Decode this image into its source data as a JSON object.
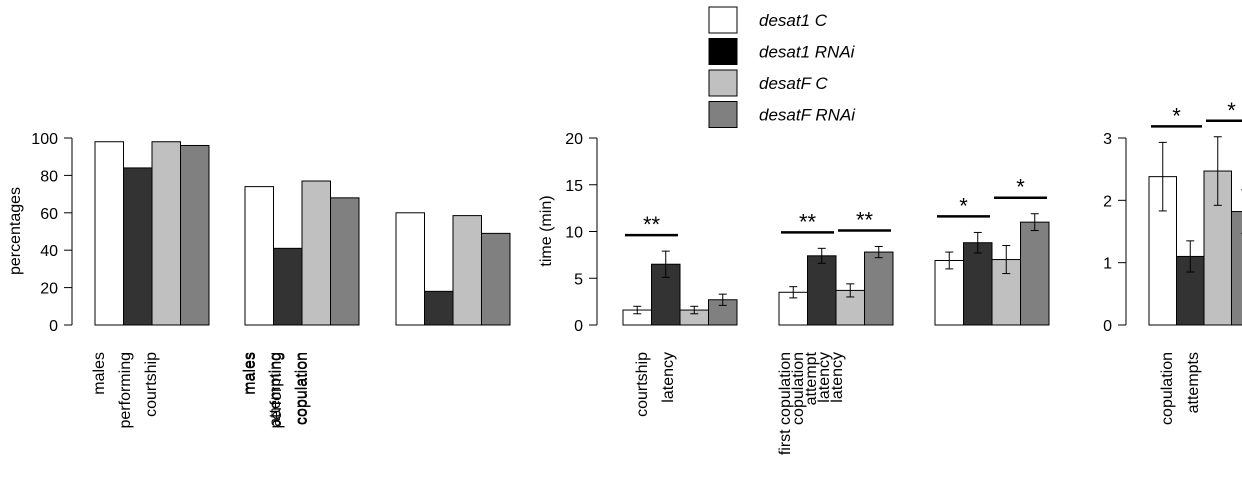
{
  "legend": [
    {
      "label": "desat1 C",
      "color": "#ffffff"
    },
    {
      "label": "desat1 RNAi",
      "color": "#000000"
    },
    {
      "label": "desatF C",
      "color": "#c0c0c0"
    },
    {
      "label": "desatF RNAi",
      "color": "#808080"
    }
  ],
  "chart_data": [
    {
      "type": "bar",
      "ylabel": "percentages",
      "ylim": [
        0,
        100
      ],
      "yticks": [
        0,
        20,
        40,
        60,
        80,
        100
      ],
      "group_colors": [
        "#ffffff",
        "#333333",
        "#c0c0c0",
        "#808080"
      ],
      "categories": [
        {
          "lines": [
            "males",
            "performing",
            "courtship"
          ]
        },
        {
          "lines": [
            "males",
            "attempting",
            "copulation"
          ]
        },
        {
          "lines": [
            "males",
            "performing",
            "copulation"
          ]
        }
      ],
      "series": [
        {
          "name": "desat1 C",
          "values": [
            98,
            74,
            60
          ]
        },
        {
          "name": "desat1 RNAi",
          "values": [
            84,
            41,
            18
          ]
        },
        {
          "name": "desatF C",
          "values": [
            98,
            77,
            58.5
          ]
        },
        {
          "name": "desatF RNAi",
          "values": [
            96,
            68,
            49
          ]
        }
      ]
    },
    {
      "type": "bar",
      "ylabel": "time (min)",
      "ylim": [
        0,
        20
      ],
      "yticks": [
        0,
        5,
        10,
        15,
        20
      ],
      "group_colors": [
        "#ffffff",
        "#333333",
        "#c0c0c0",
        "#808080"
      ],
      "categories": [
        {
          "lines": [
            "courtship",
            "latency"
          ]
        },
        {
          "lines": [
            "first copulation",
            "attempt",
            "latency"
          ]
        },
        {
          "lines": [
            "copulation",
            "latency"
          ]
        }
      ],
      "series": [
        {
          "name": "desat1 C",
          "values": [
            1.6,
            3.5,
            6.9
          ],
          "err": [
            0.4,
            0.6,
            0.9
          ]
        },
        {
          "name": "desat1 RNAi",
          "values": [
            6.5,
            7.4,
            8.8
          ],
          "err": [
            1.4,
            0.8,
            1.1
          ]
        },
        {
          "name": "desatF C",
          "values": [
            1.6,
            3.7,
            7.0
          ],
          "err": [
            0.4,
            0.7,
            1.5
          ]
        },
        {
          "name": "desatF RNAi",
          "values": [
            2.7,
            7.8,
            11.0
          ],
          "err": [
            0.6,
            0.6,
            0.9
          ]
        }
      ],
      "significance": [
        {
          "category": 0,
          "from": 0,
          "to": 1,
          "label": "**"
        },
        {
          "category": 1,
          "from": 0,
          "to": 1,
          "label": "**"
        },
        {
          "category": 1,
          "from": 2,
          "to": 3,
          "label": "**"
        },
        {
          "category": 2,
          "from": 0,
          "to": 1,
          "label": "*"
        },
        {
          "category": 2,
          "from": 2,
          "to": 3,
          "label": "*"
        }
      ]
    },
    {
      "type": "bar",
      "ylabel": "",
      "ylim": [
        0,
        3
      ],
      "yticks": [
        0,
        1,
        2,
        3
      ],
      "group_colors": [
        "#ffffff",
        "#333333",
        "#c0c0c0",
        "#808080"
      ],
      "categories": [
        {
          "lines": [
            "copulation",
            "attempts"
          ]
        }
      ],
      "series": [
        {
          "name": "desat1 C",
          "values": [
            2.38
          ],
          "err": [
            0.55
          ]
        },
        {
          "name": "desat1 RNAi",
          "values": [
            1.1
          ],
          "err": [
            0.25
          ]
        },
        {
          "name": "desatF C",
          "values": [
            2.47
          ],
          "err": [
            0.55
          ]
        },
        {
          "name": "desatF RNAi",
          "values": [
            1.82
          ],
          "err": [
            0.35
          ]
        }
      ],
      "significance": [
        {
          "category": 0,
          "from": 0,
          "to": 1,
          "label": "*"
        },
        {
          "category": 0,
          "from": 2,
          "to": 3,
          "label": "*"
        }
      ]
    }
  ]
}
